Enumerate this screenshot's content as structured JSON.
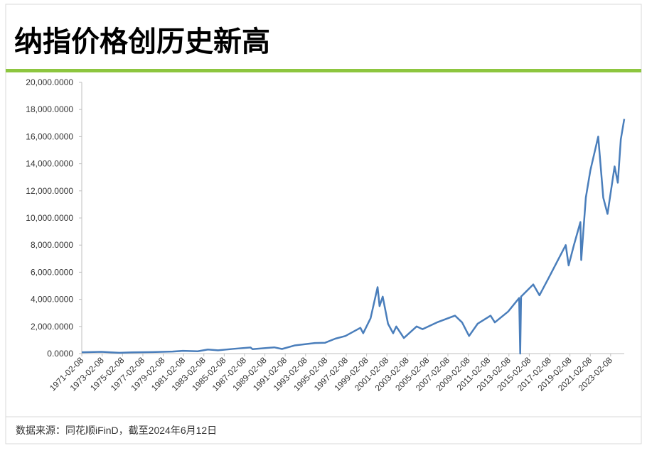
{
  "chart_data": {
    "type": "line",
    "title": "纳指价格创历史新高",
    "source": "数据来源：同花顺iFinD，截至2024年6月12日",
    "color": "#4a7ebb",
    "x": [
      "1971-02-05",
      "1973-01-10",
      "1974-10-15",
      "1976-01-10",
      "1978-01-10",
      "1980-01-10",
      "1981-01-10",
      "1982-07-01",
      "1983-07-01",
      "1984-07-01",
      "1986-01-10",
      "1987-09-10",
      "1987-11-20",
      "1990-01-10",
      "1990-10-15",
      "1992-01-10",
      "1994-01-10",
      "1995-01-10",
      "1996-01-10",
      "1997-01-10",
      "1998-07-01",
      "1998-10-10",
      "1999-07-01",
      "2000-03-10",
      "2000-05-20",
      "2000-09-10",
      "2001-03-20",
      "2001-09-20",
      "2002-01-10",
      "2002-10-10",
      "2004-01-10",
      "2004-08-10",
      "2006-01-10",
      "2007-10-20",
      "2008-07-01",
      "2009-03-09",
      "2010-01-10",
      "2011-04-20",
      "2011-09-20",
      "2013-01-10",
      "2014-02-10",
      "2014-03-20",
      "2014-04-20",
      "2015-07-01",
      "2016-02-10",
      "2017-01-10",
      "2018-09-10",
      "2018-12-24",
      "2019-07-01",
      "2020-02-19",
      "2020-03-20",
      "2020-09-01",
      "2021-02-10",
      "2021-11-20",
      "2022-05-20",
      "2022-10-20",
      "2023-07-01",
      "2023-10-25",
      "2024-02-10",
      "2024-06-12"
    ],
    "values": [
      100,
      130,
      60,
      90,
      110,
      150,
      200,
      170,
      300,
      240,
      350,
      450,
      330,
      460,
      340,
      600,
      780,
      800,
      1100,
      1300,
      1900,
      1500,
      2600,
      4900,
      3500,
      4200,
      2200,
      1500,
      2000,
      1150,
      2000,
      1800,
      2300,
      2800,
      2300,
      1300,
      2200,
      2800,
      2300,
      3100,
      4100,
      0,
      4200,
      5100,
      4300,
      5600,
      8000,
      6500,
      8000,
      9700,
      6900,
      11500,
      13500,
      16000,
      11500,
      10300,
      13800,
      12600,
      15800,
      17300
    ],
    "xlim": [
      "1971-02-05",
      "2024-06-12"
    ],
    "xticks": [
      "1971-02-08",
      "1973-02-08",
      "1975-02-08",
      "1977-02-08",
      "1979-02-08",
      "1981-02-08",
      "1983-02-08",
      "1985-02-08",
      "1987-02-08",
      "1989-02-08",
      "1991-02-08",
      "1993-02-08",
      "1995-02-08",
      "1997-02-08",
      "1999-02-08",
      "2001-02-08",
      "2003-02-08",
      "2005-02-08",
      "2007-02-08",
      "2009-02-08",
      "2011-02-08",
      "2013-02-08",
      "2015-02-08",
      "2017-02-08",
      "2019-02-08",
      "2021-02-08",
      "2023-02-08"
    ],
    "ylim": [
      0,
      20000
    ],
    "yticks": [
      {
        "value": 0,
        "label": "0.0000"
      },
      {
        "value": 2000,
        "label": "2,000.0000"
      },
      {
        "value": 4000,
        "label": "4,000.0000"
      },
      {
        "value": 6000,
        "label": "6,000.0000"
      },
      {
        "value": 8000,
        "label": "8,000.0000"
      },
      {
        "value": 10000,
        "label": "10,000.0000"
      },
      {
        "value": 12000,
        "label": "12,000.0000"
      },
      {
        "value": 14000,
        "label": "14,000.0000"
      },
      {
        "value": 16000,
        "label": "16,000.0000"
      },
      {
        "value": 18000,
        "label": "18,000.0000"
      },
      {
        "value": 20000,
        "label": "20,000.0000"
      }
    ]
  }
}
